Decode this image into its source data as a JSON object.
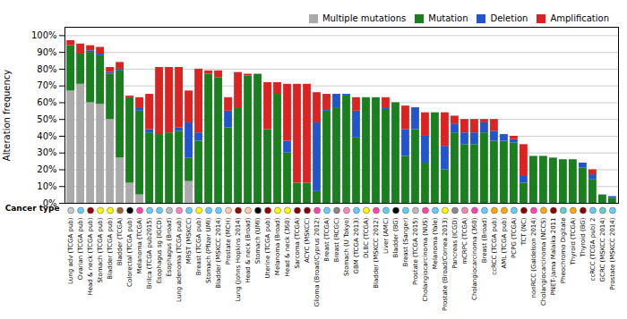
{
  "chart_data": {
    "type": "bar",
    "stacked": true,
    "ylabel": "Alteration frequency",
    "xlabel": "Cancer type",
    "ylim": [
      0,
      1.05
    ],
    "yticks": [
      {
        "value": 0.0,
        "label": "0%"
      },
      {
        "value": 0.1,
        "label": "10%"
      },
      {
        "value": 0.2,
        "label": "20%"
      },
      {
        "value": 0.3,
        "label": "30%"
      },
      {
        "value": 0.4,
        "label": "40%"
      },
      {
        "value": 0.5,
        "label": "50%"
      },
      {
        "value": 0.6,
        "label": "60%"
      },
      {
        "value": 0.7,
        "label": "70%"
      },
      {
        "value": 0.8,
        "label": "80%"
      },
      {
        "value": 0.9,
        "label": "90%"
      },
      {
        "value": 1.0,
        "label": "100%"
      }
    ],
    "grid": true,
    "legend": "upper right",
    "categories": [
      "Lung adv (TCGA pub)",
      "Ovarian (TCGA pub)",
      "Head & neck (TCGA pub)",
      "Stomach (TCGA pub)",
      "Bladder (TCGA pub)",
      "Bladder (TCGA)",
      "Colorectal (TCGA pub)",
      "Melanoma (TCGA)",
      "Brilca (TCGA pub2015)",
      "Esophagus sg (IGCD)",
      "Esophagus (Broad)",
      "Lung adenoma (TCGA pub)",
      "MRST (MSKCC)",
      "Breast (TCGA pub)",
      "Stomach (Pfizer UMI)",
      "Bladder (MSKCC 2014)",
      "Prostate (MCH)",
      "Lung (Johns Hopkins 2014)",
      "Head & neck (Broad)",
      "Stomach (UMI)",
      "Uterine (TCGA pub)",
      "Melanoma (Broad)",
      "Head & neck (360)",
      "Sarcoma (TCGA)",
      "ACYC (MSKCC)",
      "Glioma (Broad/Cyprus 2012)",
      "Breast (TCGA)",
      "Breast (RCGC)",
      "Stomach (U Tokyo)",
      "GBM (TCGA 2013)",
      "DLBC (TCGA)",
      "Bladder (MSKCC 2012)",
      "Liver (AMC)",
      "Bladder (BG)",
      "Breast (Sanger)",
      "Prostate (TCGA 2015)",
      "Cholangiocarcinoma (NUS)",
      "Melanoma (Yale)",
      "Prostate (Broad/Cornea 2013)",
      "Pancreas (ICGD)",
      "mCRPC (TCGA)",
      "Cholangiocarcinoma (360)",
      "Breast (Broad)",
      "ccRCC (TCGA pub)",
      "AML (TCGA pub)",
      "PCPG (TCGA)",
      "TCT (NC)",
      "nonRCC (Galdelson 2014)",
      "Cholangiocarcinoma (NCCS)",
      "PNET-Jama Malaika 2011",
      "Pheochromo Digitate",
      "Thyroid (TCGA)",
      "Thyroid (BG)",
      "ccRCC (TCGA pub) 2",
      "GCRC (MSKCC 2014)",
      "Prostate (MSKCC 2014)"
    ],
    "colors": [
      "#c8c8c8",
      "#66ccff",
      "#990000",
      "#ffff00",
      "#ffff00",
      "#996633",
      "#000000",
      "#ff44aa",
      "#66ccff",
      "#66ccff",
      "#bbbbbb",
      "#ff88bb",
      "#66ccff",
      "#ffff00",
      "#66ccff",
      "#66ccff",
      "#ffccaa",
      "#990000",
      "#ffccaa",
      "#000000",
      "#990000",
      "#ffff00",
      "#ffff00",
      "#880000",
      "#880000",
      "#ff44aa",
      "#66ccff",
      "#888888",
      "#ff88bb",
      "#66ccff",
      "#ffff00",
      "#ff44aa",
      "#66ccff",
      "#000000",
      "#66ccff",
      "#bbbbbb",
      "#ff44aa",
      "#66ccff",
      "#ffff00",
      "#888888",
      "#ff88bb",
      "#ff44aa",
      "#66ccff",
      "#ffaa00",
      "#ffaa00",
      "#66ccff",
      "#880000",
      "#ff44aa",
      "#ffaa00",
      "#880000",
      "#66cccc",
      "#ffaa00",
      "#880000",
      "#66ccff",
      "#66cccc",
      "#66ccff"
    ],
    "series": [
      {
        "name": "Multiple mutations",
        "color": "#aaaaaa",
        "values": [
          0.67,
          0.71,
          0.6,
          0.59,
          0.5,
          0.27,
          0.12,
          0.05,
          0.0,
          0.0,
          0.0,
          0.0,
          0.13,
          0.0,
          0.0,
          0.0,
          0.0,
          0.0,
          0.0,
          0.0,
          0.0,
          0.0,
          0.0,
          0.0,
          0.0,
          0.0,
          0.0,
          0.0,
          0.0,
          0.0,
          0.0,
          0.0,
          0.0,
          0.0,
          0.0,
          0.0,
          0.0,
          0.0,
          0.0,
          0.0,
          0.0,
          0.0,
          0.0,
          0.0,
          0.0,
          0.0,
          0.0,
          0.0,
          0.0,
          0.0,
          0.0,
          0.0,
          0.0,
          0.0,
          0.0,
          0.0
        ]
      },
      {
        "name": "Mutation",
        "color": "#1a7f1e",
        "values": [
          0.27,
          0.18,
          0.3,
          0.29,
          0.27,
          0.52,
          0.51,
          0.5,
          0.42,
          0.41,
          0.42,
          0.43,
          0.14,
          0.37,
          0.77,
          0.75,
          0.45,
          0.57,
          0.76,
          0.77,
          0.44,
          0.65,
          0.3,
          0.12,
          0.12,
          0.07,
          0.55,
          0.57,
          0.64,
          0.39,
          0.63,
          0.63,
          0.56,
          0.6,
          0.28,
          0.44,
          0.24,
          0.54,
          0.2,
          0.42,
          0.35,
          0.35,
          0.42,
          0.37,
          0.37,
          0.36,
          0.12,
          0.28,
          0.28,
          0.27,
          0.26,
          0.26,
          0.21,
          0.14,
          0.05,
          0.03
        ]
      },
      {
        "name": "Deletion",
        "color": "#2255cc",
        "values": [
          0.0,
          0.0,
          0.01,
          0.01,
          0.01,
          0.01,
          0.0,
          0.02,
          0.02,
          0.0,
          0.0,
          0.02,
          0.21,
          0.05,
          0.0,
          0.0,
          0.1,
          0.0,
          0.0,
          0.0,
          0.0,
          0.0,
          0.07,
          0.0,
          0.0,
          0.41,
          0.01,
          0.08,
          0.01,
          0.16,
          0.0,
          0.0,
          0.01,
          0.0,
          0.16,
          0.13,
          0.16,
          0.0,
          0.14,
          0.05,
          0.07,
          0.07,
          0.06,
          0.06,
          0.04,
          0.02,
          0.04,
          0.0,
          0.0,
          0.0,
          0.0,
          0.0,
          0.03,
          0.03,
          0.0,
          0.01
        ]
      },
      {
        "name": "Amplification",
        "color": "#dd2222",
        "values": [
          0.03,
          0.06,
          0.03,
          0.04,
          0.03,
          0.04,
          0.01,
          0.06,
          0.21,
          0.4,
          0.39,
          0.36,
          0.19,
          0.38,
          0.02,
          0.04,
          0.08,
          0.21,
          0.01,
          0.0,
          0.28,
          0.07,
          0.34,
          0.59,
          0.59,
          0.18,
          0.09,
          0.0,
          0.0,
          0.08,
          0.0,
          0.0,
          0.06,
          0.0,
          0.14,
          0.0,
          0.14,
          0.0,
          0.2,
          0.05,
          0.08,
          0.08,
          0.02,
          0.07,
          0.0,
          0.02,
          0.19,
          0.0,
          0.0,
          0.0,
          0.0,
          0.0,
          0.0,
          0.03,
          0.0,
          0.0
        ]
      }
    ]
  }
}
